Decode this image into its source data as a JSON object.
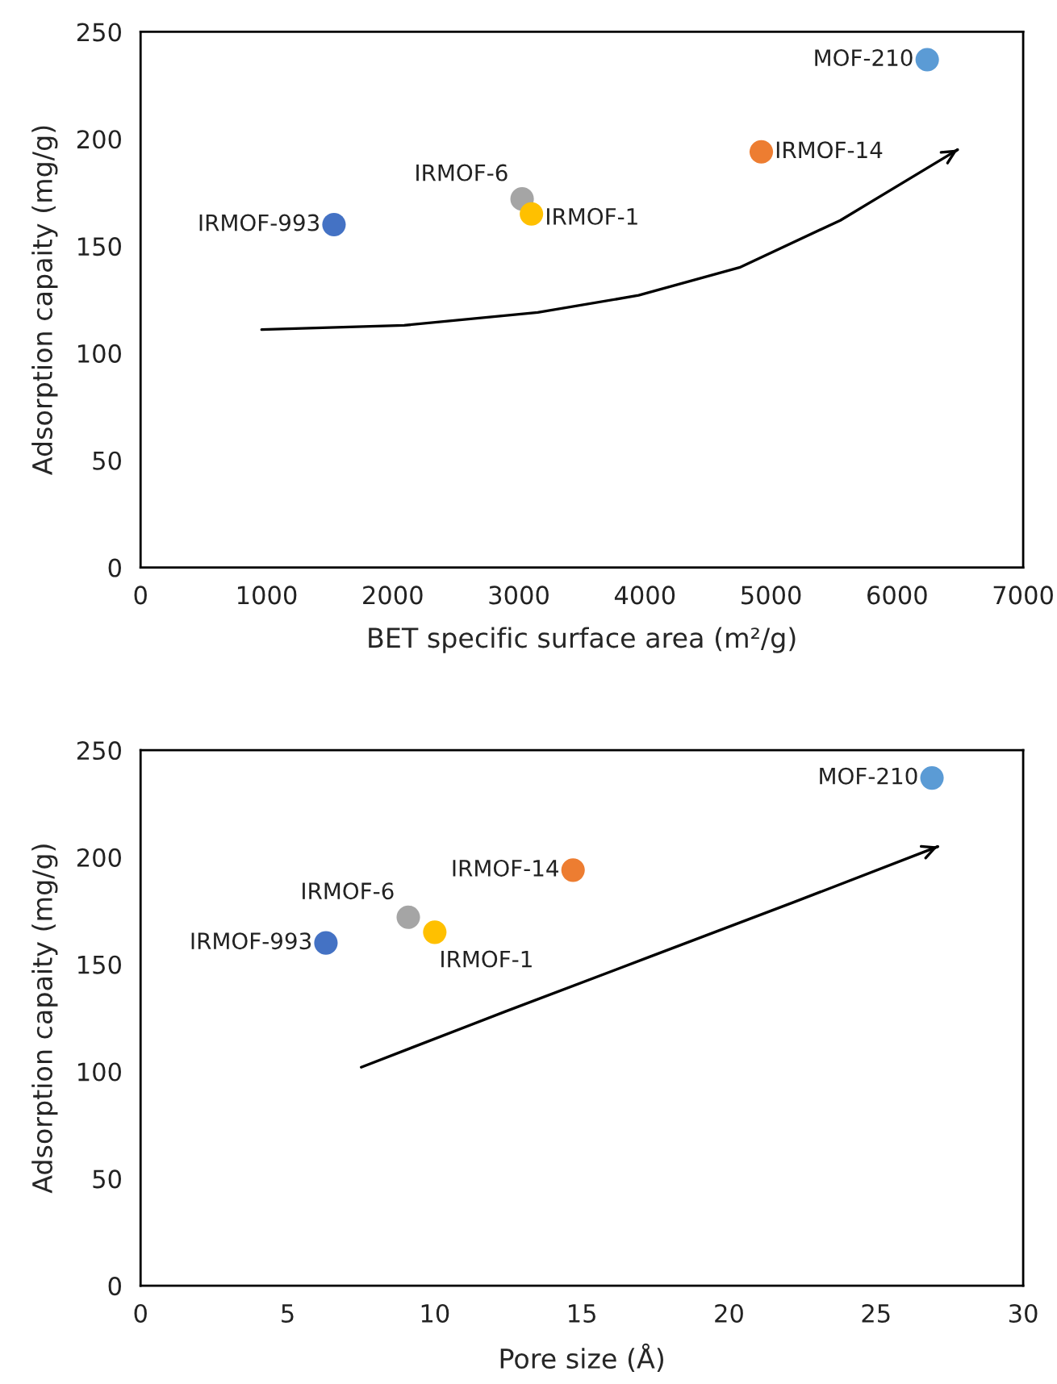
{
  "chart_data": [
    {
      "type": "scatter",
      "xlabel": "BET specific surface area (m²/g)",
      "ylabel": "Adsorption capaity (mg/g)",
      "xlim": [
        0,
        7000
      ],
      "xticks": [
        0,
        1000,
        2000,
        3000,
        4000,
        5000,
        6000,
        7000
      ],
      "ylim": [
        0,
        250
      ],
      "yticks": [
        0,
        50,
        100,
        150,
        200,
        250
      ],
      "grid": false,
      "legend": false,
      "marker": "circle",
      "series": [
        {
          "name": "IRMOF-993",
          "color": "#4472c4",
          "x": [
            1534
          ],
          "values": [
            160
          ]
        },
        {
          "name": "IRMOF-6",
          "color": "#a5a5a5",
          "x": [
            3026
          ],
          "values": [
            172
          ]
        },
        {
          "name": "IRMOF-1",
          "color": "#ffc000",
          "x": [
            3100
          ],
          "values": [
            165
          ]
        },
        {
          "name": "IRMOF-14",
          "color": "#ed7d31",
          "x": [
            4923
          ],
          "values": [
            194
          ]
        },
        {
          "name": "MOF-210",
          "color": "#5b9bd5",
          "x": [
            6239
          ],
          "values": [
            237
          ]
        },
        {
          "type": "line",
          "marker": "none",
          "color": "#000000",
          "x": [
            960,
            2090,
            3150,
            3950,
            4750,
            5550,
            6480
          ],
          "values": [
            111,
            113,
            119,
            127,
            140,
            162,
            195
          ]
        }
      ]
    },
    {
      "type": "scatter",
      "xlabel": "Pore size (Å)",
      "ylabel": "Adsorption capaity (mg/g)",
      "xlim": [
        0,
        30
      ],
      "xticks": [
        0,
        5,
        10,
        15,
        20,
        25,
        30
      ],
      "ylim": [
        0,
        250
      ],
      "yticks": [
        0,
        50,
        100,
        150,
        200,
        250
      ],
      "grid": false,
      "legend": false,
      "marker": "circle",
      "series": [
        {
          "name": "IRMOF-993",
          "color": "#4472c4",
          "x": [
            6.3
          ],
          "values": [
            160
          ]
        },
        {
          "name": "IRMOF-6",
          "color": "#a5a5a5",
          "x": [
            9.1
          ],
          "values": [
            172
          ]
        },
        {
          "name": "IRMOF-1",
          "color": "#ffc000",
          "x": [
            10.0
          ],
          "values": [
            165
          ]
        },
        {
          "name": "IRMOF-14",
          "color": "#ed7d31",
          "x": [
            14.7
          ],
          "values": [
            194
          ]
        },
        {
          "name": "MOF-210",
          "color": "#5b9bd5",
          "x": [
            26.9
          ],
          "values": [
            237
          ]
        },
        {
          "type": "line",
          "marker": "none",
          "color": "#000000",
          "x": [
            7.5,
            12.4,
            17.3,
            22.2,
            27.1
          ],
          "values": [
            102,
            128,
            153.5,
            179,
            205
          ]
        }
      ]
    }
  ]
}
